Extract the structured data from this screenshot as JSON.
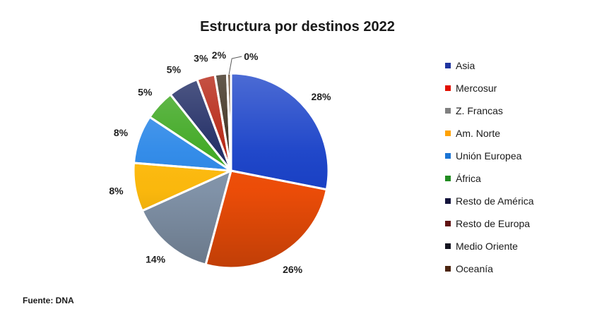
{
  "chart_data": {
    "type": "pie",
    "title": "Estructura por destinos 2022",
    "source": "Fuente: DNA",
    "start_angle_deg": 0,
    "direction": "clockwise",
    "legend_position": "right",
    "slices": [
      {
        "label": "Asia",
        "value": 28,
        "value_label": "28%",
        "legend_color": "#1F35A0",
        "slice_color": "#1A42C8"
      },
      {
        "label": "Mercosur",
        "value": 26,
        "value_label": "26%",
        "legend_color": "#E21000",
        "slice_color": "#F04E08"
      },
      {
        "label": "Z. Francas",
        "value": 14,
        "value_label": "14%",
        "legend_color": "#808080",
        "slice_color": "#8395AB"
      },
      {
        "label": "Am. Norte",
        "value": 8,
        "value_label": "8%",
        "legend_color": "#FFA200",
        "slice_color": "#FFBB0D"
      },
      {
        "label": "Unión Europea",
        "value": 8,
        "value_label": "8%",
        "legend_color": "#1B74D4",
        "slice_color": "#2E89E8"
      },
      {
        "label": "África",
        "value": 5,
        "value_label": "5%",
        "legend_color": "#218C21",
        "slice_color": "#3FA822"
      },
      {
        "label": "Resto de América",
        "value": 5,
        "value_label": "5%",
        "legend_color": "#14143C",
        "slice_color": "#1E2A63"
      },
      {
        "label": "Resto de Europa",
        "value": 3,
        "value_label": "3%",
        "legend_color": "#601212",
        "slice_color": "#B52210"
      },
      {
        "label": "Medio Oriente",
        "value": 2,
        "value_label": "2%",
        "legend_color": "#141420",
        "slice_color": "#3A2C1C"
      },
      {
        "label": "Oceanía",
        "value": 0,
        "value_label": "0%",
        "legend_color": "#4C2510",
        "slice_color": "#5C3A1E"
      }
    ]
  }
}
